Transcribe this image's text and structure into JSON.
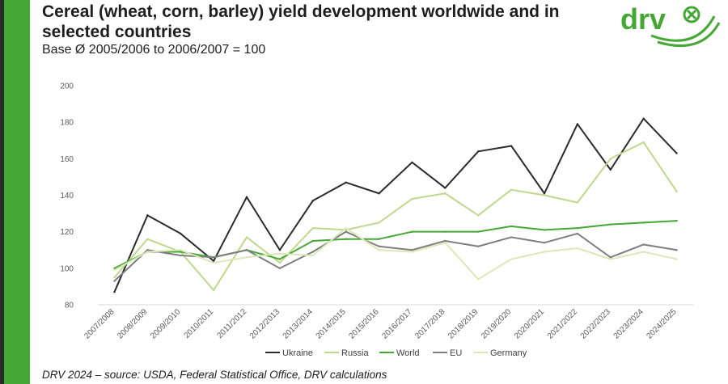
{
  "header": {
    "title": "Cereal (wheat, corn, barley) yield development worldwide and in selected countries",
    "subtitle": "Base Ø 2005/2006 to 2006/2007 = 100"
  },
  "logo": {
    "text": "drv",
    "icon": "x-circle-icon",
    "color": "#46a834"
  },
  "footer": {
    "source": "DRV 2024 – source: USDA, Federal Statistical Office, DRV calculations"
  },
  "colors": {
    "accent": "#46a834",
    "sidebar": "#46a834"
  },
  "chart_data": {
    "type": "line",
    "title": "",
    "xlabel": "",
    "ylabel": "",
    "ylim": [
      80,
      200
    ],
    "yticks": [
      80,
      100,
      120,
      140,
      160,
      180,
      200
    ],
    "grid": false,
    "legend_position": "bottom",
    "categories": [
      "2007/2008",
      "2008/2009",
      "2009/2010",
      "2010/2011",
      "2011/2012",
      "2012/2013",
      "2013/2014",
      "2014/2015",
      "2015/2016",
      "2016/2017",
      "2017/2018",
      "2018/2019",
      "2019/2020",
      "2020/2021",
      "2021/2022",
      "2022/2023",
      "2023/2024",
      "2024/2025"
    ],
    "series": [
      {
        "name": "Ukraine",
        "color": "#2b2b2b",
        "values": [
          87,
          129,
          119,
          104,
          139,
          110,
          137,
          147,
          141,
          158,
          144,
          164,
          167,
          141,
          179,
          154,
          182,
          163
        ]
      },
      {
        "name": "Russia",
        "color": "#bfd88c",
        "values": [
          95,
          116,
          109,
          88,
          117,
          103,
          122,
          121,
          125,
          138,
          141,
          129,
          143,
          140,
          136,
          160,
          169,
          142
        ]
      },
      {
        "name": "World",
        "color": "#46a834",
        "values": [
          100,
          109,
          109,
          106,
          110,
          105,
          115,
          116,
          116,
          120,
          120,
          120,
          123,
          121,
          122,
          124,
          125,
          126
        ]
      },
      {
        "name": "EU",
        "color": "#7f7f7f",
        "values": [
          93,
          110,
          107,
          106,
          110,
          100,
          109,
          120,
          112,
          110,
          115,
          112,
          117,
          114,
          119,
          106,
          113,
          110
        ]
      },
      {
        "name": "Germany",
        "color": "#dbe8b8",
        "values": [
          99,
          109,
          110,
          103,
          106,
          108,
          107,
          122,
          110,
          109,
          114,
          94,
          105,
          109,
          111,
          105,
          109,
          105
        ]
      }
    ]
  }
}
